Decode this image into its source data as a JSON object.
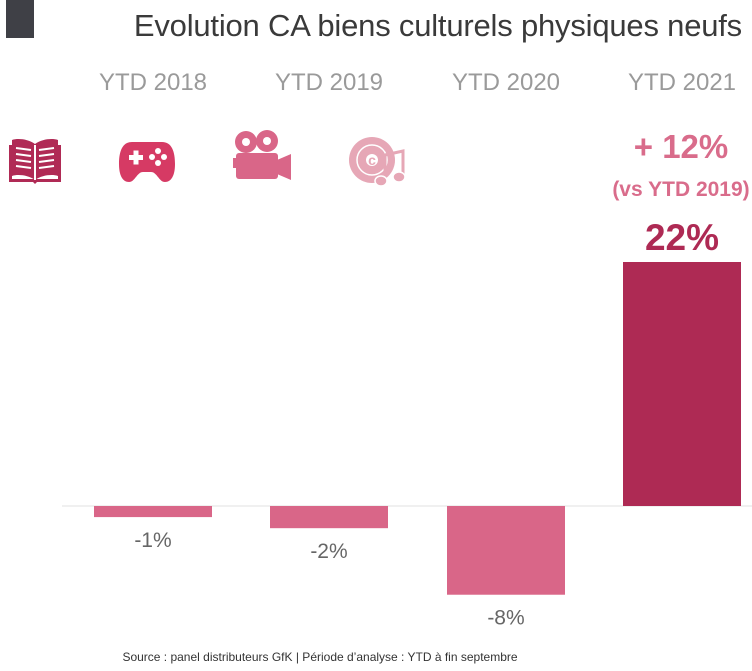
{
  "chart_data": {
    "type": "bar",
    "title": "Evolution CA biens culturels physiques neufs",
    "categories": [
      "YTD 2018",
      "YTD 2019",
      "YTD 2020",
      "YTD 2021"
    ],
    "values": [
      -1,
      -2,
      -8,
      22
    ],
    "data_labels": [
      "-1%",
      "-2%",
      "-8%",
      "22%"
    ],
    "ylim": [
      -8,
      22
    ],
    "colors": [
      "#d96688",
      "#d96688",
      "#d96688",
      "#ae2a54"
    ],
    "grid": false,
    "annotation": {
      "headline": "+ 12%",
      "detail": "(vs YTD 2019)"
    },
    "icons": [
      "book-icon",
      "gamepad-icon",
      "movie-camera-icon",
      "music-disc-icon"
    ],
    "icon_colors": [
      "#b02a55",
      "#d63a64",
      "#d96688",
      "#e6a7b6"
    ]
  },
  "source": "Source : panel distributeurs GfK | Période d’analyse : YTD à fin septembre"
}
